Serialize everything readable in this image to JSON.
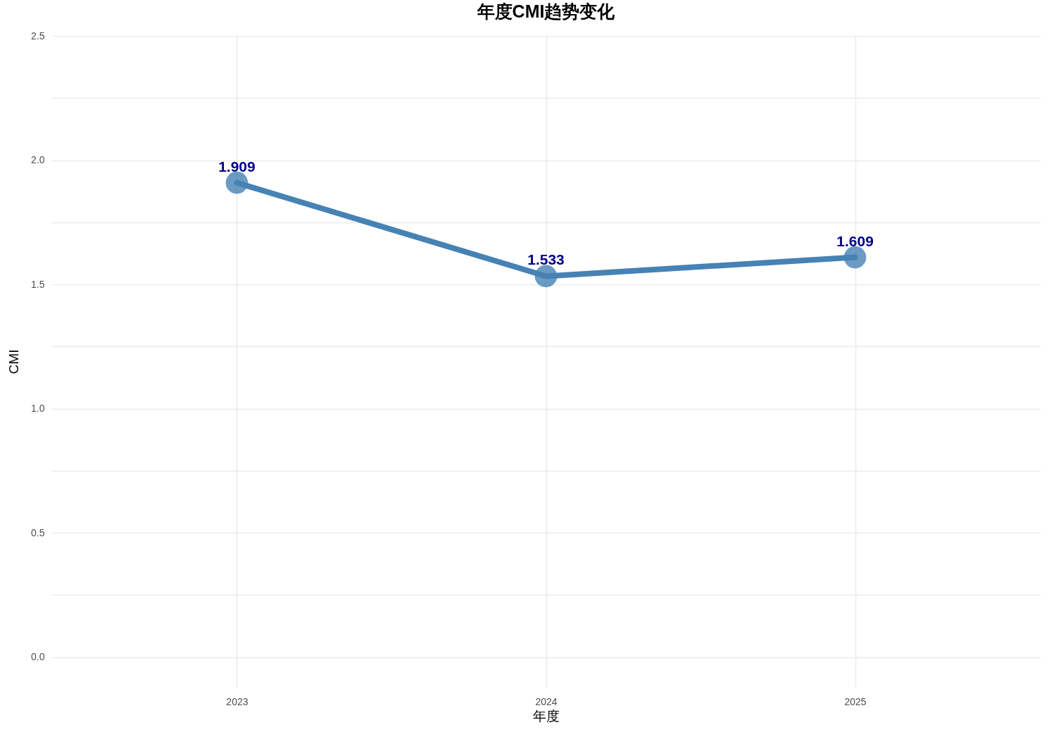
{
  "chart_data": {
    "type": "line",
    "title": "年度CMI趋势变化",
    "xlabel": "年度",
    "ylabel": "CMI",
    "categories": [
      "2023",
      "2024",
      "2025"
    ],
    "series": [
      {
        "color": "#4682b4",
        "values": [
          1.909,
          1.533,
          1.609
        ]
      }
    ],
    "data_labels": true,
    "marker": "circle",
    "line_style": "solid",
    "grid": true,
    "ylim": [
      -0.12,
      2.5
    ],
    "yticks": [
      {
        "value": 0,
        "label": "0.0"
      },
      {
        "value": 0.25,
        "label": null
      },
      {
        "value": 0.5,
        "label": "0.5"
      },
      {
        "value": 0.75,
        "label": null
      },
      {
        "value": 1,
        "label": "1.0"
      },
      {
        "value": 1.25,
        "label": null
      },
      {
        "value": 1.5,
        "label": "1.5"
      },
      {
        "value": 1.75,
        "label": null
      },
      {
        "value": 2,
        "label": "2.0"
      },
      {
        "value": 2.25,
        "label": null
      },
      {
        "value": 2.5,
        "label": "2.5"
      }
    ]
  }
}
